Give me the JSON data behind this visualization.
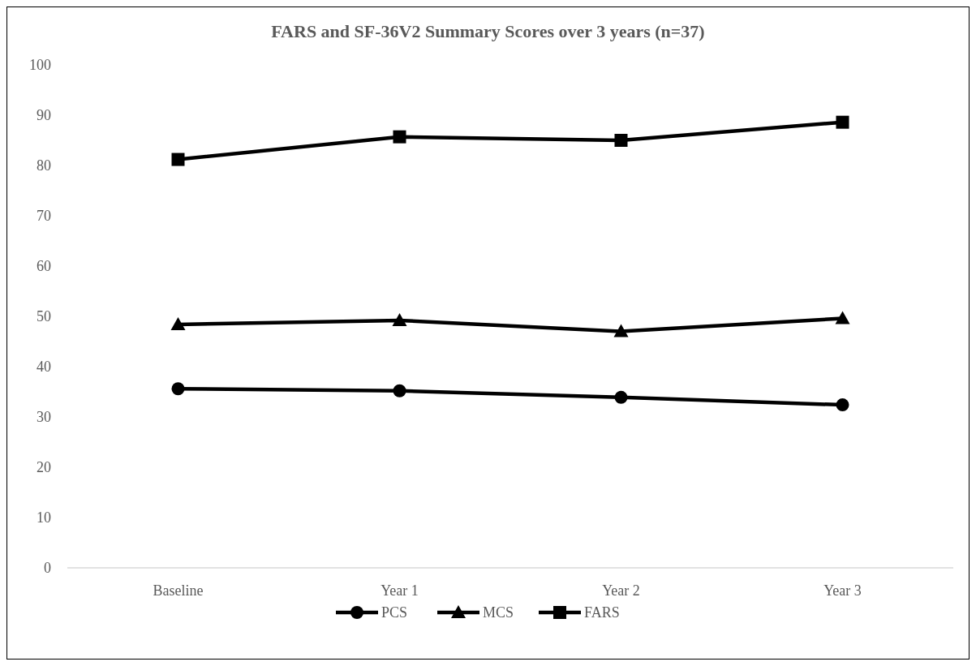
{
  "chart_data": {
    "type": "line",
    "title": "FARS and SF-36V2 Summary Scores over 3 years (n=37)",
    "categories": [
      "Baseline",
      "Year 1",
      "Year 2",
      "Year 3"
    ],
    "series": [
      {
        "name": "PCS",
        "color": "#000000",
        "marker": "circle",
        "values": [
          35.6,
          35.2,
          33.9,
          32.4
        ]
      },
      {
        "name": "MCS",
        "color": "#000000",
        "marker": "triangle",
        "values": [
          48.4,
          49.2,
          47,
          49.6
        ]
      },
      {
        "name": "FARS",
        "color": "#000000",
        "marker": "square",
        "values": [
          81.2,
          85.7,
          85,
          88.6
        ]
      }
    ],
    "ylim": [
      0,
      100
    ],
    "yticks": [
      0,
      10,
      20,
      30,
      40,
      50,
      60,
      70,
      80,
      90,
      100
    ],
    "grid": false,
    "legend": "bottom"
  }
}
